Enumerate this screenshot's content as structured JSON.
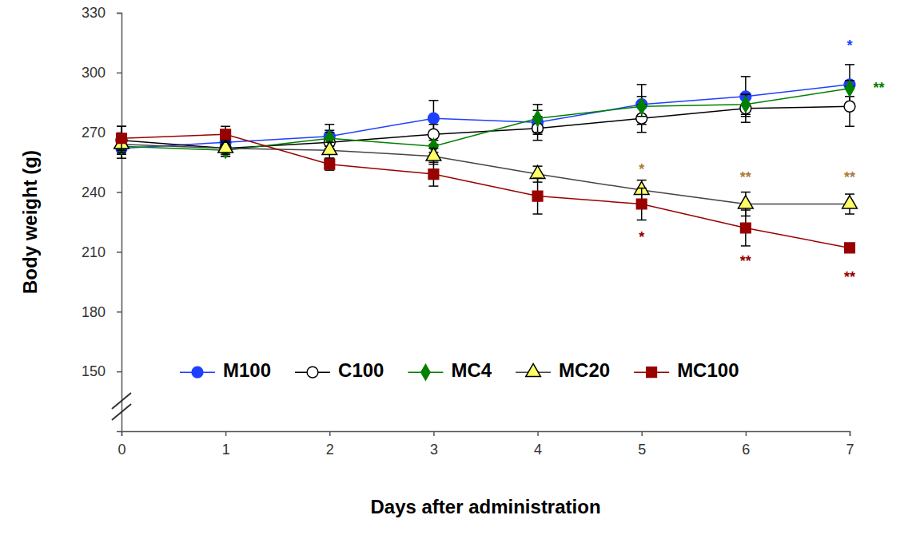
{
  "chart_data": {
    "type": "line",
    "x_label": "Days after administration",
    "y_label": "Body weight (g)",
    "x": [
      0,
      1,
      2,
      3,
      4,
      5,
      6,
      7
    ],
    "xlim": [
      0,
      7
    ],
    "xticks": [
      0,
      1,
      2,
      3,
      4,
      5,
      6,
      7
    ],
    "ylim": [
      120,
      330
    ],
    "yticks": [
      150,
      180,
      210,
      240,
      270,
      300,
      330
    ],
    "grid": false,
    "legend": "bottom",
    "series": [
      {
        "name": "M100",
        "color": "#1f3fff",
        "marker": "circle",
        "values": [
          262,
          265,
          268,
          277,
          275,
          284,
          288,
          294
        ],
        "errors": [
          5,
          4,
          6,
          9,
          6,
          10,
          10,
          10
        ]
      },
      {
        "name": "C100",
        "color": "#000000",
        "marker": "circle-open",
        "values": [
          266,
          262,
          265,
          269,
          272,
          277,
          282,
          283
        ],
        "errors": [
          7,
          4,
          5,
          5,
          6,
          7,
          7,
          10
        ]
      },
      {
        "name": "MC4",
        "color": "#008000",
        "marker": "diamond",
        "values": [
          263,
          261,
          267,
          263,
          277,
          283,
          284,
          292
        ],
        "errors": [
          4,
          3,
          4,
          3,
          7,
          5,
          5,
          4
        ]
      },
      {
        "name": "MC20",
        "color": "#ffff66",
        "marker": "triangle",
        "values": [
          264,
          262,
          261,
          258,
          249,
          241,
          234,
          234
        ],
        "errors": [
          4,
          3,
          4,
          4,
          4,
          5,
          6,
          5
        ]
      },
      {
        "name": "MC100",
        "color": "#990000",
        "marker": "square",
        "values": [
          267,
          269,
          254,
          249,
          238,
          234,
          222,
          212
        ],
        "errors": [
          6,
          4,
          3,
          6,
          9,
          8,
          9,
          2
        ]
      }
    ],
    "annotations": [
      {
        "text": "*",
        "x": 7,
        "y": 313,
        "color": "#1f3fff"
      },
      {
        "text": "**",
        "x": 7.28,
        "y": 292,
        "color": "#008000"
      },
      {
        "text": "*",
        "x": 5,
        "y": 251,
        "color": "#b07a3a"
      },
      {
        "text": "**",
        "x": 6,
        "y": 247,
        "color": "#b07a3a"
      },
      {
        "text": "**",
        "x": 7,
        "y": 247,
        "color": "#b07a3a"
      },
      {
        "text": "*",
        "x": 5,
        "y": 217,
        "color": "#990000"
      },
      {
        "text": "**",
        "x": 6,
        "y": 205,
        "color": "#990000"
      },
      {
        "text": "**",
        "x": 7,
        "y": 197,
        "color": "#990000"
      }
    ]
  }
}
